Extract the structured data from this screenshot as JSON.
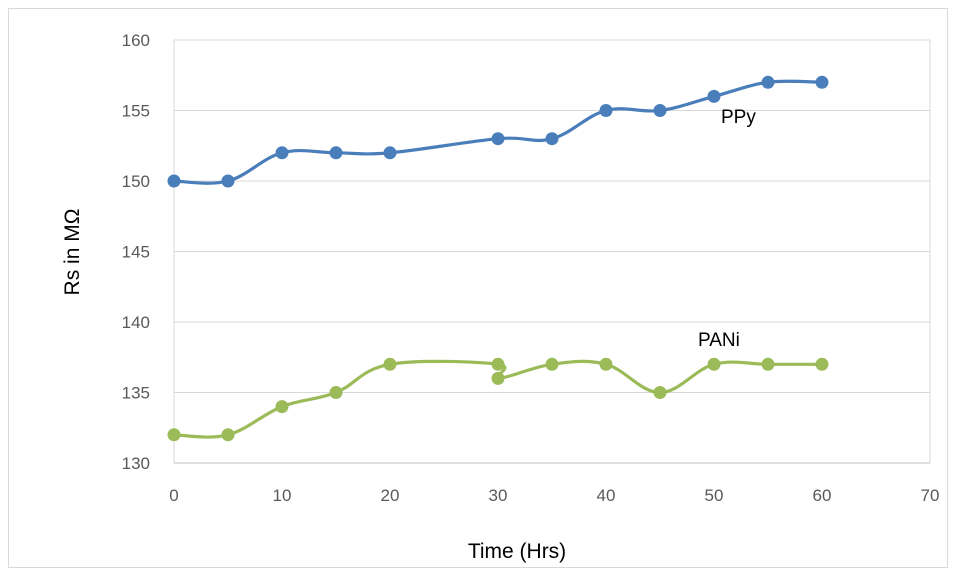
{
  "chart_data": {
    "type": "line",
    "title": "",
    "xlabel": "Time (Hrs)",
    "ylabel": "Rs in MΩ",
    "xlim": [
      0,
      70
    ],
    "ylim": [
      130,
      160
    ],
    "x_ticks": [
      0,
      10,
      20,
      30,
      40,
      50,
      60,
      70
    ],
    "y_ticks": [
      130,
      135,
      140,
      145,
      150,
      155,
      160
    ],
    "grid": "horizontal",
    "legend": "none (series labelled inline)",
    "series": [
      {
        "name": "PPy",
        "color": "#4a7ebb",
        "points": [
          [
            0,
            150
          ],
          [
            5,
            150
          ],
          [
            10,
            152
          ],
          [
            15,
            152
          ],
          [
            20,
            152
          ],
          [
            30,
            153
          ],
          [
            35,
            153
          ],
          [
            40,
            155
          ],
          [
            45,
            155
          ],
          [
            50,
            156
          ],
          [
            55,
            157
          ],
          [
            60,
            157
          ]
        ]
      },
      {
        "name": "PANi",
        "color": "#9bbb59",
        "points": [
          [
            0,
            132
          ],
          [
            5,
            132
          ],
          [
            10,
            134
          ],
          [
            15,
            135
          ],
          [
            20,
            137
          ],
          [
            30,
            137
          ],
          [
            30,
            136
          ],
          [
            35,
            137
          ],
          [
            40,
            137
          ],
          [
            45,
            135
          ],
          [
            50,
            137
          ],
          [
            55,
            137
          ],
          [
            60,
            137
          ]
        ]
      }
    ]
  }
}
